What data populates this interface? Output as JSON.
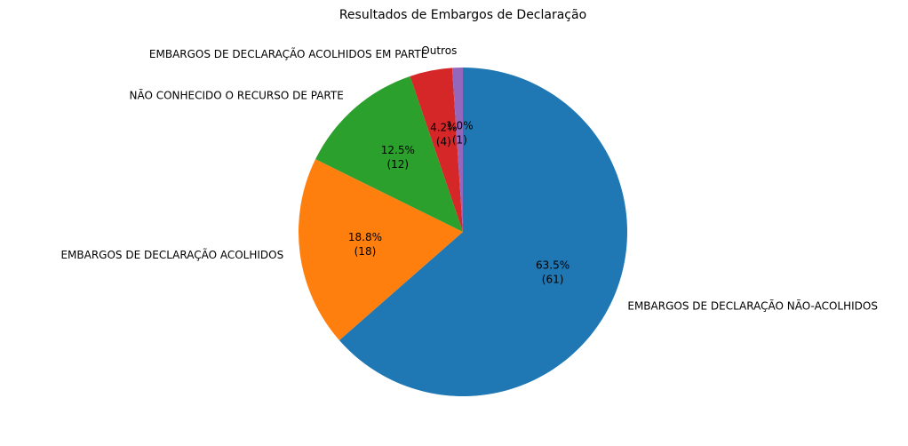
{
  "chart_data": {
    "type": "pie",
    "title": "Resultados de Embargos de Declaração",
    "start_angle_deg": 90,
    "direction": "clockwise",
    "slices": [
      {
        "label": "EMBARGOS DE DECLARAÇÃO NÃO-ACOLHIDOS",
        "value": 61,
        "percent_label": "63.5%",
        "count_label": "(61)",
        "color": "#1f77b4"
      },
      {
        "label": "EMBARGOS DE DECLARAÇÃO ACOLHIDOS",
        "value": 18,
        "percent_label": "18.8%",
        "count_label": "(18)",
        "color": "#ff7f0e"
      },
      {
        "label": "NÃO CONHECIDO O RECURSO DE PARTE",
        "value": 12,
        "percent_label": "12.5%",
        "count_label": "(12)",
        "color": "#2ca02c"
      },
      {
        "label": "EMBARGOS DE DECLARAÇÃO ACOLHIDOS EM PARTE",
        "value": 4,
        "percent_label": "4.2%",
        "count_label": "(4)",
        "color": "#d62728"
      },
      {
        "label": "Outros",
        "value": 1,
        "percent_label": "1.0%",
        "count_label": "(1)",
        "color": "#9467bd"
      }
    ]
  }
}
